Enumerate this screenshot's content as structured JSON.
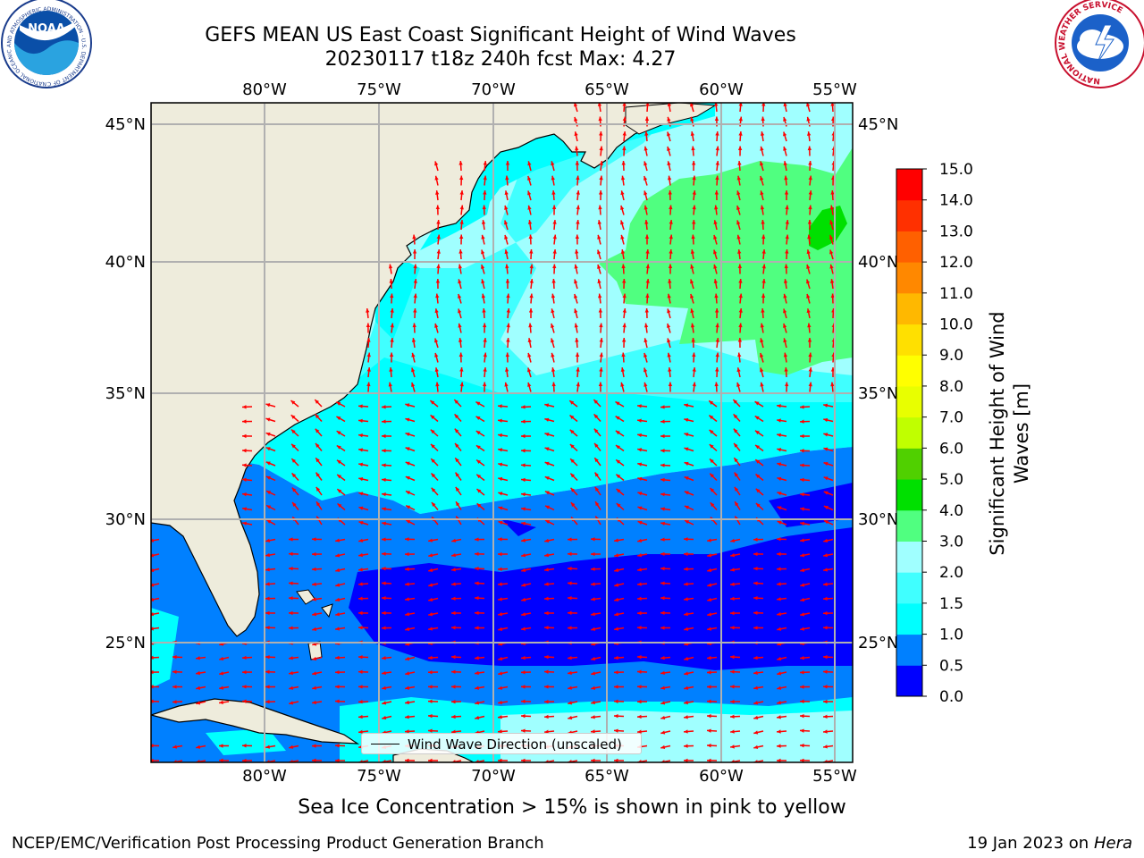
{
  "title": {
    "line1": "GEFS MEAN US East Coast Significant Height of Wind Waves",
    "line2": "20230117 t18z 240h fcst   Max: 4.27"
  },
  "map": {
    "lon_ticks": [
      "80°W",
      "75°W",
      "70°W",
      "65°W",
      "60°W",
      "55°W"
    ],
    "lat_ticks": [
      "45°N",
      "40°N",
      "35°N",
      "30°N",
      "25°N"
    ],
    "legend_label": "Wind Wave Direction (unscaled)",
    "arrow_color": "#ff0000",
    "land_color": "#eeecdc",
    "grid_color": "#b0b0b0"
  },
  "colorbar": {
    "label": "Significant Height of Wind Waves [m]",
    "tick_labels": [
      "0.0",
      "0.5",
      "1.0",
      "1.5",
      "2.0",
      "3.0",
      "4.0",
      "5.0",
      "6.0",
      "7.0",
      "8.0",
      "9.0",
      "10.0",
      "11.0",
      "12.0",
      "13.0",
      "14.0",
      "15.0"
    ],
    "colors": [
      "#0000ff",
      "#0080ff",
      "#00ffff",
      "#40ffff",
      "#a0ffff",
      "#50ff80",
      "#00e000",
      "#50d000",
      "#c0ff00",
      "#e8ff00",
      "#ffff00",
      "#ffe000",
      "#ffb800",
      "#ff8800",
      "#ff6000",
      "#ff3000",
      "#ff0000"
    ]
  },
  "logos": {
    "noaa": {
      "text": "NOAA",
      "ring_text": "NATIONAL OCEANIC AND ATMOSPHERIC ADMINISTRATION · U.S. DEPARTMENT OF COMMERCE"
    },
    "nws": {
      "ring_text": "NATIONAL WEATHER SERVICE"
    }
  },
  "footer": {
    "ice_note": "Sea Ice Concentration > 15% is shown in pink to yellow",
    "credit": "NCEP/EMC/Verification Post Processing Product Generation Branch",
    "date": "19 Jan 2023 on ",
    "machine": "Hera"
  }
}
